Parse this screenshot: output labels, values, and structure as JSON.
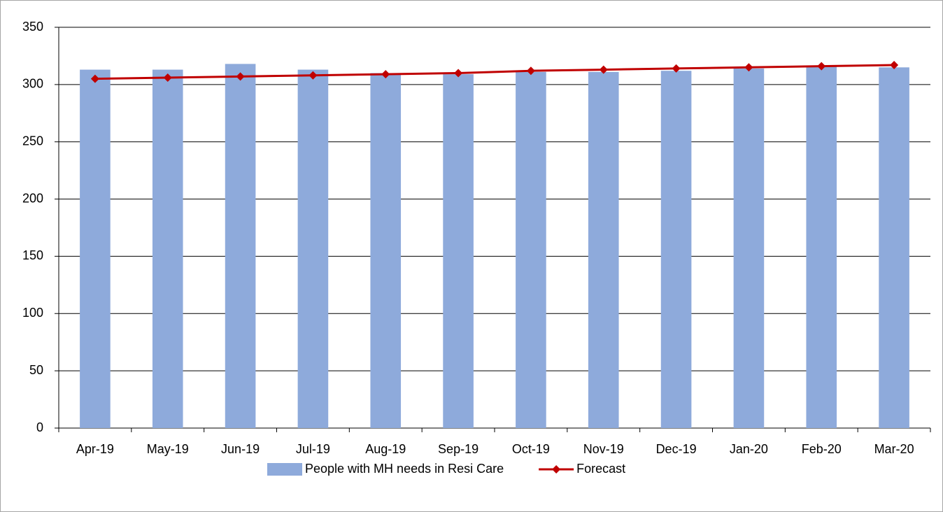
{
  "chart_data": {
    "type": "bar",
    "categories": [
      "Apr-19",
      "May-19",
      "Jun-19",
      "Jul-19",
      "Aug-19",
      "Sep-19",
      "Oct-19",
      "Nov-19",
      "Dec-19",
      "Jan-20",
      "Feb-20",
      "Mar-20"
    ],
    "series": [
      {
        "name": "People with MH needs in Resi Care",
        "type": "bar",
        "color": "#8eaadb",
        "values": [
          313,
          313,
          318,
          313,
          310,
          309,
          311,
          311,
          312,
          314,
          316,
          315
        ]
      },
      {
        "name": "Forecast",
        "type": "line",
        "color": "#c00000",
        "values": [
          305,
          306,
          307,
          308,
          309,
          310,
          312,
          313,
          314,
          315,
          316,
          317
        ]
      }
    ],
    "ylim": [
      0,
      350
    ],
    "yticks": [
      0,
      50,
      100,
      150,
      200,
      250,
      300,
      350
    ],
    "grid": true,
    "legend": "bottom"
  }
}
